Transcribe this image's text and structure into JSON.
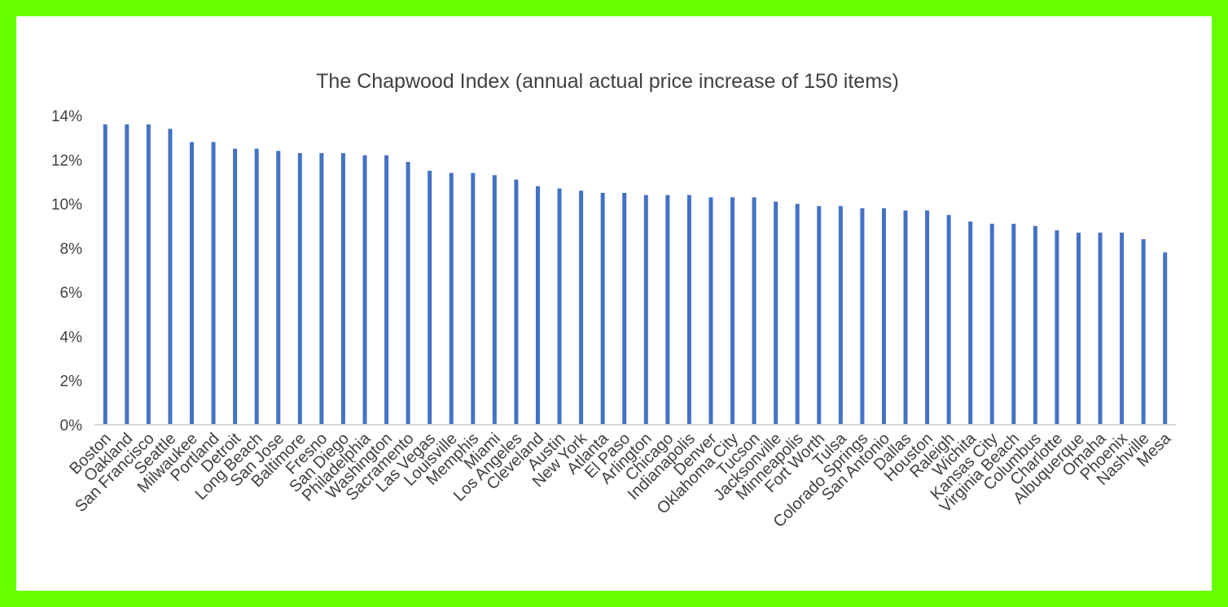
{
  "colors": {
    "border": "#66ff00",
    "panel": "#ffffff",
    "bar": "#4472c4",
    "axis": "#d9d9d9",
    "text": "#404040"
  },
  "chart_data": {
    "type": "bar",
    "title": "The Chapwood Index (annual actual price increase of 150 items)",
    "xlabel": "",
    "ylabel": "",
    "ylim": [
      0,
      14
    ],
    "yticks": [
      "0%",
      "2%",
      "4%",
      "6%",
      "8%",
      "10%",
      "12%",
      "14%"
    ],
    "grid": false,
    "legend": "none",
    "categories": [
      "Boston",
      "Oakland",
      "San Francisco",
      "Seattle",
      "Milwaukee",
      "Portland",
      "Detroit",
      "Long Beach",
      "San Jose",
      "Baltimore",
      "Fresno",
      "San Diego",
      "Philadelphia",
      "Washington",
      "Sacramento",
      "Las Vegas",
      "Louisville",
      "Memphis",
      "Miami",
      "Los Angeles",
      "Cleveland",
      "Austin",
      "New York",
      "Atlanta",
      "El Paso",
      "Arlington",
      "Chicago",
      "Indianapolis",
      "Denver",
      "Oklahoma City",
      "Tucson",
      "Jacksonville",
      "Minneapolis",
      "Fort Worth",
      "Tulsa",
      "Colorado Springs",
      "San Antonio",
      "Dallas",
      "Houston",
      "Raleigh",
      "Wichita",
      "Kansas City",
      "Virginia Beach",
      "Columbus",
      "Charlotte",
      "Albuquerque",
      "Omaha",
      "Phoenix",
      "Nashville",
      "Mesa"
    ],
    "values": [
      13.6,
      13.6,
      13.6,
      13.4,
      12.8,
      12.8,
      12.5,
      12.5,
      12.4,
      12.3,
      12.3,
      12.3,
      12.2,
      12.2,
      11.9,
      11.5,
      11.4,
      11.4,
      11.3,
      11.1,
      10.8,
      10.7,
      10.6,
      10.5,
      10.5,
      10.4,
      10.4,
      10.4,
      10.3,
      10.3,
      10.3,
      10.1,
      10.0,
      9.9,
      9.9,
      9.8,
      9.8,
      9.7,
      9.7,
      9.5,
      9.2,
      9.1,
      9.1,
      9.0,
      8.8,
      8.7,
      8.7,
      8.7,
      8.4,
      7.8
    ]
  }
}
